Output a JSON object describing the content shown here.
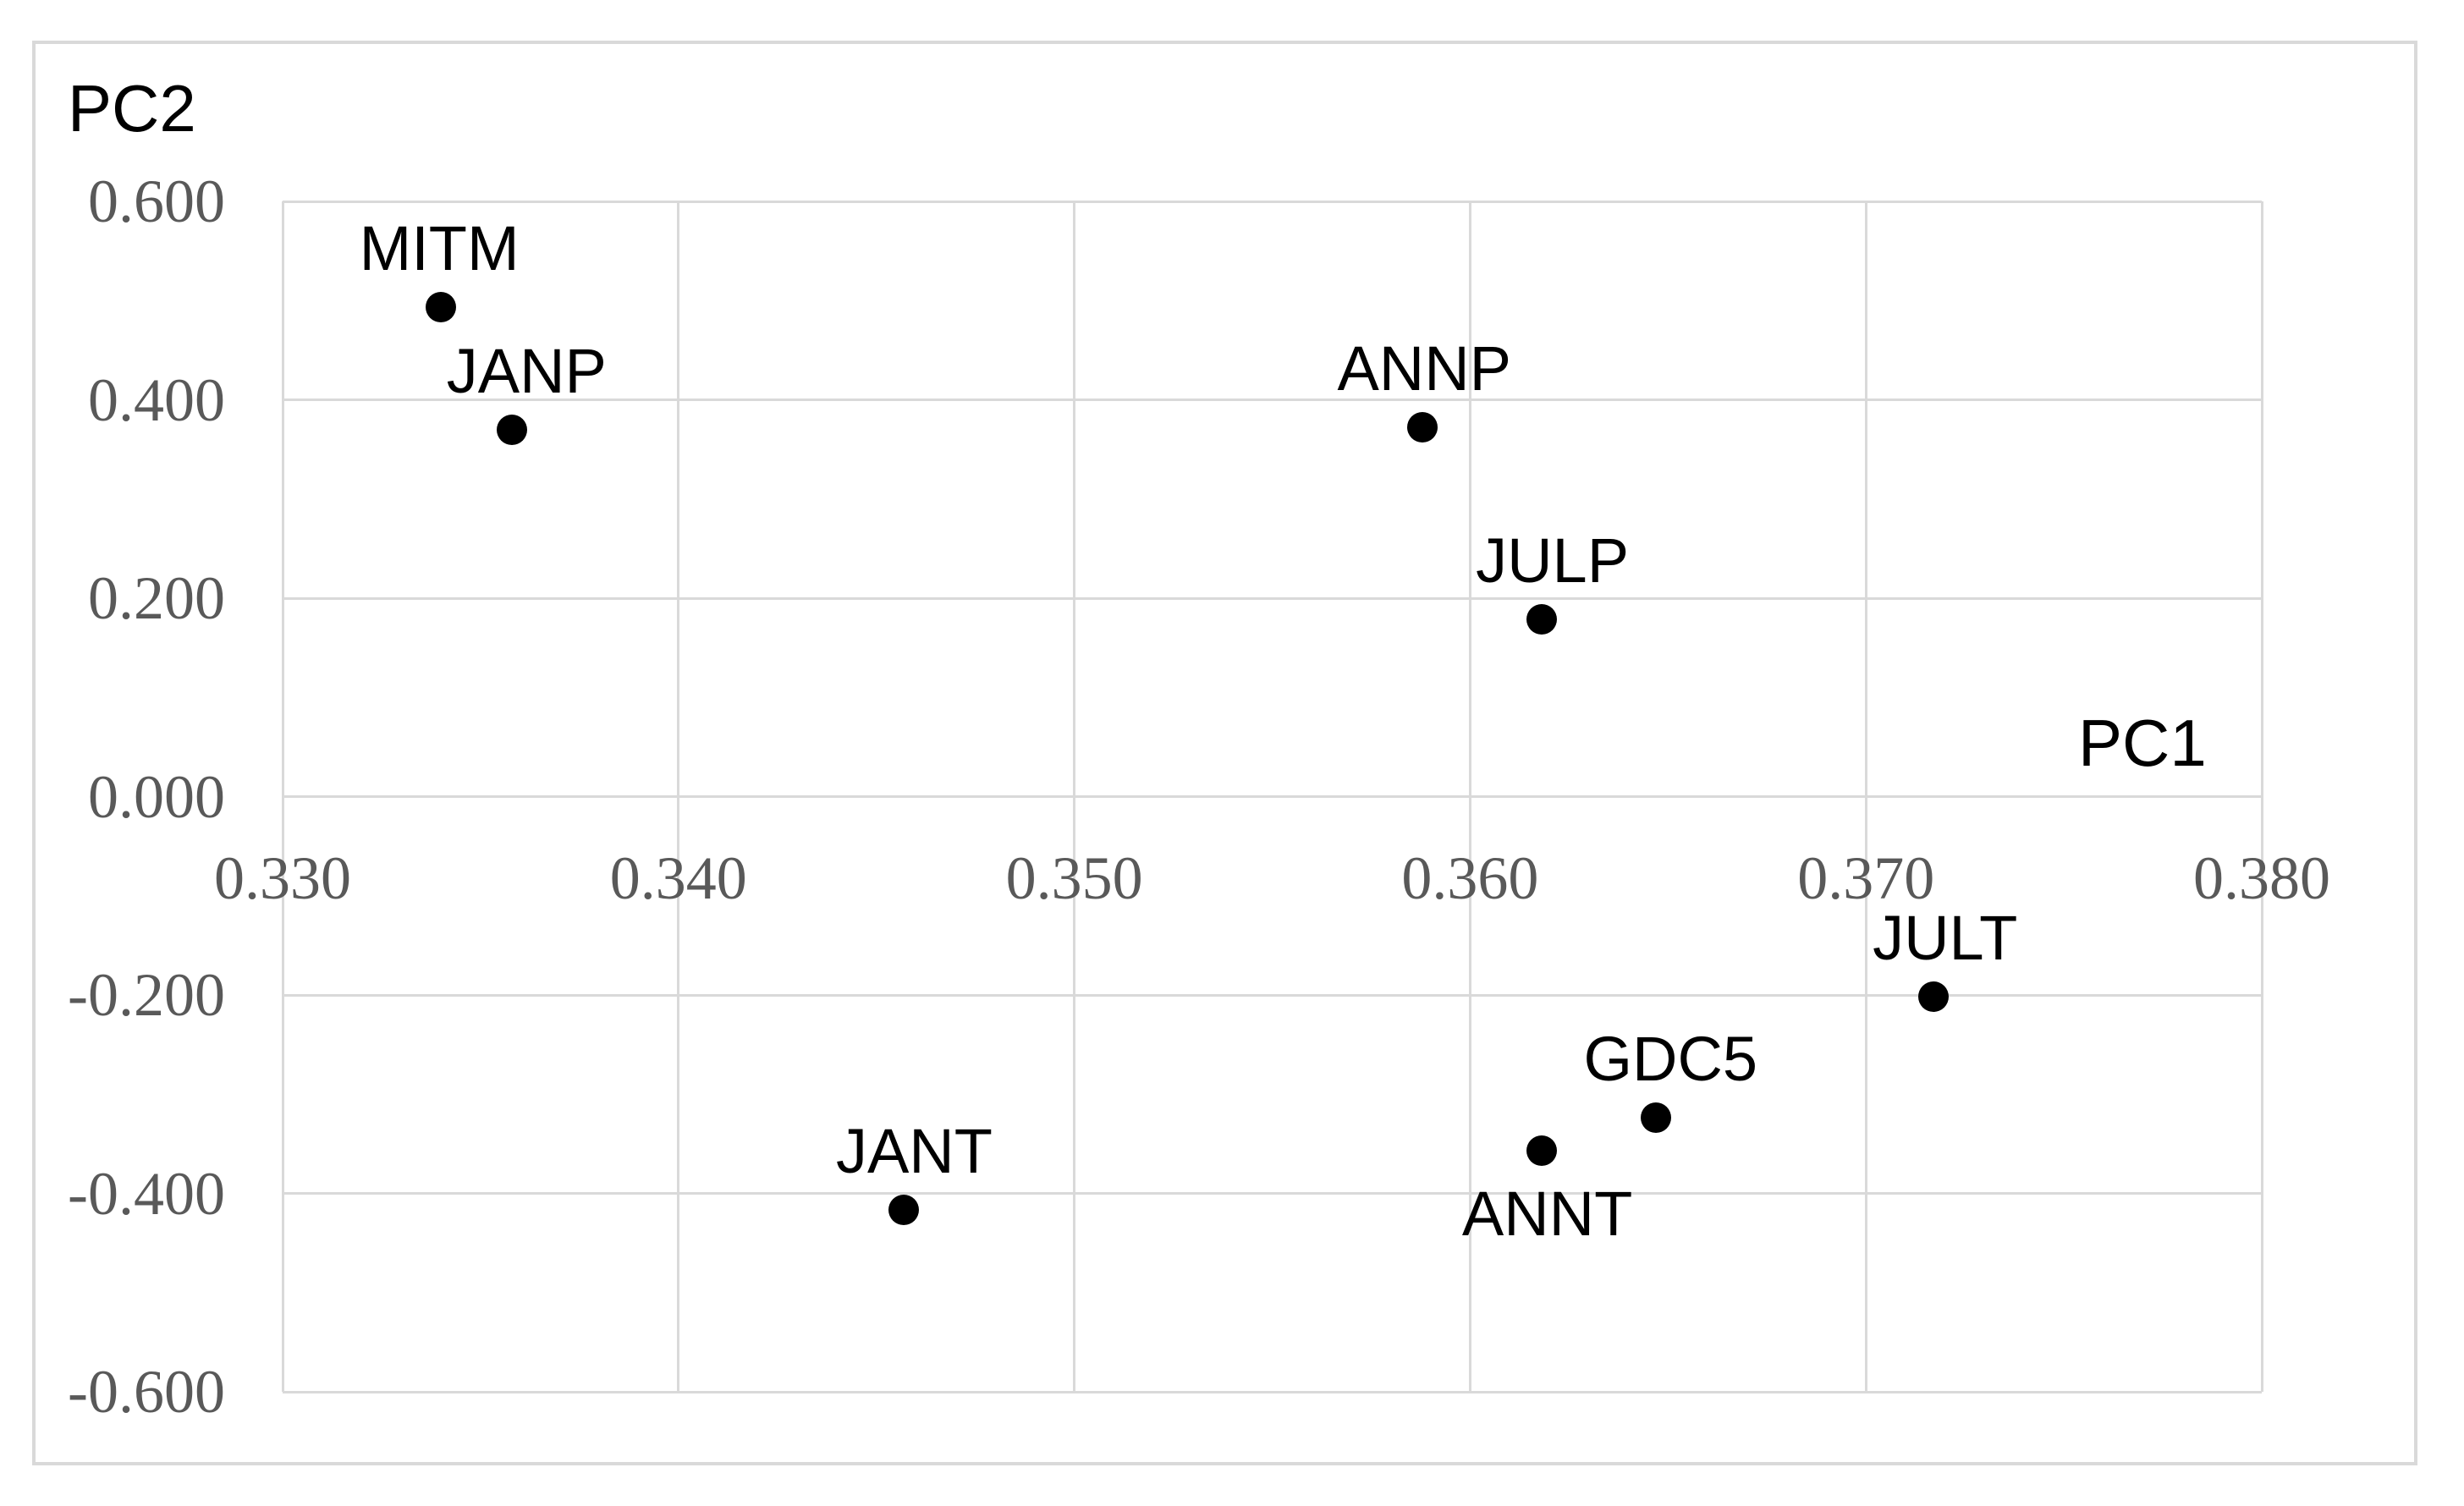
{
  "figure": {
    "background_color": "#ffffff",
    "border_color": "#d9d9d9",
    "gridline_color": "#d9d9d9",
    "tick_label_color": "#595959",
    "marker_color": "#000000",
    "data_label_color": "#000000"
  },
  "chart_data": {
    "type": "scatter",
    "title": "",
    "x_axis": {
      "label": "PC1",
      "min": 0.33,
      "max": 0.38,
      "tick_values": [
        0.33,
        0.34,
        0.35,
        0.36,
        0.37,
        0.38
      ],
      "tick_labels": [
        "0.330",
        "0.340",
        "0.350",
        "0.360",
        "0.370",
        "0.380"
      ]
    },
    "y_axis": {
      "label": "PC2",
      "min": -0.6,
      "max": 0.6,
      "tick_values": [
        0.6,
        0.4,
        0.2,
        0.0,
        -0.2,
        -0.4,
        -0.6
      ],
      "tick_labels": [
        "0.600",
        "0.400",
        "0.200",
        "0.000",
        "-0.200",
        "-0.400",
        "-0.600"
      ]
    },
    "grid": true,
    "legend": "none",
    "points": [
      {
        "label": "MITM",
        "x": 0.334,
        "y": 0.493,
        "label_side": "above",
        "label_dx": -2
      },
      {
        "label": "JANP",
        "x": 0.3358,
        "y": 0.37,
        "label_side": "above",
        "label_dx": 17
      },
      {
        "label": "ANNP",
        "x": 0.3588,
        "y": 0.372,
        "label_side": "above",
        "label_dx": 2
      },
      {
        "label": "JULP",
        "x": 0.3618,
        "y": 0.179,
        "label_side": "above",
        "label_dx": 13
      },
      {
        "label": "JULT",
        "x": 0.3717,
        "y": -0.202,
        "label_side": "above",
        "label_dx": 14
      },
      {
        "label": "GDC5",
        "x": 0.3647,
        "y": -0.324,
        "label_side": "above",
        "label_dx": 17
      },
      {
        "label": "ANNT",
        "x": 0.3618,
        "y": -0.357,
        "label_side": "below",
        "label_dx": 7
      },
      {
        "label": "JANT",
        "x": 0.3457,
        "y": -0.417,
        "label_side": "above",
        "label_dx": 12
      }
    ]
  }
}
